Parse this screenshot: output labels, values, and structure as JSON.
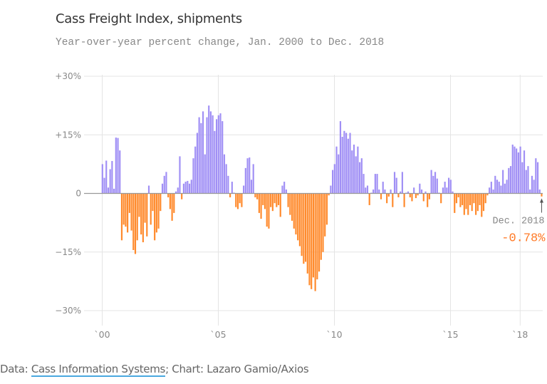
{
  "title": "Cass Freight Index, shipments",
  "subtitle": "Year-over-year percent change, Jan. 2000 to Dec. 2018",
  "footer": {
    "prefix": "Data: ",
    "source_link": "Cass Information Systems",
    "suffix": "; Chart: Lazaro Gamio/Axios"
  },
  "colors": {
    "positive": "#a08ff5",
    "negative": "#ff8a2c",
    "grid": "#e4e4e4",
    "zero": "#999999"
  },
  "annotation": {
    "label": "Dec. 2018",
    "value": "-0.78%"
  },
  "chart_data": {
    "type": "bar",
    "title": "Cass Freight Index, shipments",
    "subtitle": "Year-over-year percent change, Jan. 2000 to Dec. 2018",
    "xlabel": "",
    "ylabel": "Year-over-year percent change",
    "ylim": [
      -30,
      30
    ],
    "yticks": [
      30,
      15,
      0,
      -15,
      -30
    ],
    "ytick_labels": [
      "+30%",
      "+15%",
      "0",
      "−15%",
      "−30%"
    ],
    "xticks": [
      2000,
      2005,
      2010,
      2015,
      2018
    ],
    "xtick_labels": [
      "`00",
      "`05",
      "`10",
      "`15",
      "`18"
    ],
    "grid": true,
    "legend": "none",
    "start": "2000-01",
    "frequency": "monthly",
    "values": [
      7.5,
      4.0,
      8.4,
      1.5,
      6.2,
      8.3,
      1.2,
      14.3,
      14.2,
      11.0,
      -12.0,
      -8.0,
      -8.5,
      -10.0,
      -5.0,
      -9.5,
      -14.5,
      -15.5,
      -12.0,
      -6.0,
      -10.5,
      -12.5,
      -7.5,
      -11.0,
      2.0,
      -8.0,
      -4.5,
      -12.0,
      -10.0,
      -9.0,
      -4.5,
      2.5,
      4.5,
      5.5,
      -1.0,
      -4.0,
      -7.0,
      -5.0,
      0.5,
      1.5,
      9.5,
      -1.5,
      2.5,
      3.0,
      3.2,
      2.5,
      3.5,
      9.0,
      12.0,
      15.5,
      19.5,
      18.0,
      21.0,
      10.0,
      19.5,
      22.5,
      21.0,
      20.0,
      16.0,
      19.0,
      20.0,
      20.5,
      18.5,
      10.0,
      7.5,
      4.5,
      -1.0,
      3.0,
      0.2,
      -3.5,
      -4.0,
      -2.5,
      -3.5,
      2.0,
      6.5,
      9.0,
      9.2,
      3.5,
      7.5,
      -1.0,
      -1.5,
      -5.0,
      -6.5,
      -3.0,
      -4.0,
      -8.5,
      -9.0,
      -3.5,
      -4.5,
      -2.5,
      -3.5,
      -3.0,
      -6.0,
      2.0,
      3.0,
      1.0,
      -3.5,
      -5.5,
      -7.0,
      -9.0,
      -10.5,
      -12.0,
      -13.5,
      -16.0,
      -18.0,
      -17.5,
      -20.5,
      -23.5,
      -24.5,
      -21.5,
      -25.0,
      -22.0,
      -20.0,
      -17.0,
      -15.0,
      -11.0,
      -8.0,
      -0.5,
      2.0,
      6.0,
      7.5,
      12.0,
      10.0,
      18.5,
      14.5,
      16.0,
      15.5,
      14.0,
      15.5,
      11.0,
      12.5,
      9.5,
      12.0,
      8.0,
      9.0,
      5.0,
      1.5,
      2.0,
      -3.0,
      0.2,
      1.0,
      5.0,
      5.0,
      1.0,
      -1.5,
      3.0,
      1.0,
      -2.5,
      -0.8,
      1.0,
      -3.5,
      5.5,
      4.0,
      -1.0,
      0.5,
      5.5,
      -3.5,
      0.2,
      0.5,
      -1.0,
      -2.0,
      1.5,
      -1.2,
      -0.5,
      2.5,
      1.0,
      -2.0,
      0.5,
      -3.5,
      -1.5,
      6.0,
      4.5,
      5.5,
      3.8,
      0.2,
      -2.5,
      1.5,
      3.0,
      1.5,
      4.0,
      3.5,
      0.5,
      -5.0,
      -2.5,
      -1.0,
      -3.5,
      -3.0,
      -5.5,
      -4.0,
      -5.5,
      -3.0,
      -4.5,
      -2.5,
      -5.5,
      -4.5,
      -3.0,
      -6.0,
      -4.5,
      -2.5,
      -0.5,
      1.5,
      3.0,
      1.0,
      4.5,
      3.5,
      3.0,
      2.0,
      6.0,
      2.5,
      3.5,
      6.5,
      7.0,
      12.5,
      12.0,
      11.5,
      10.5,
      12.0,
      8.0,
      11.0,
      6.0,
      7.0,
      1.0,
      4.5,
      3.5,
      9.0,
      8.0,
      1.0,
      -0.78
    ]
  }
}
